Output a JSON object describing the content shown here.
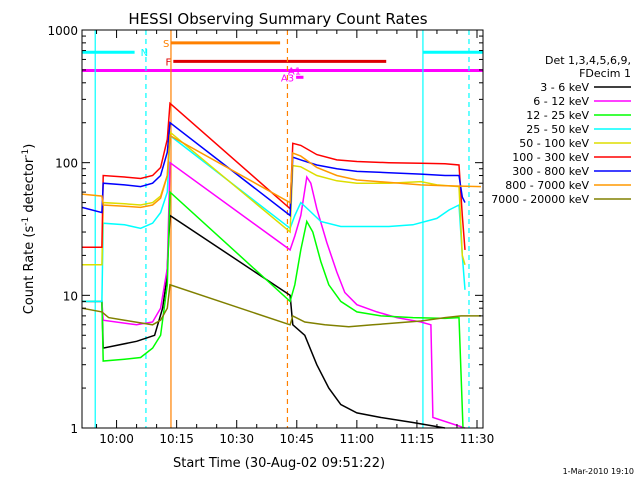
{
  "chart_data": {
    "type": "line",
    "title": "HESSI Observing Summary Count Rates",
    "xlabel": "Start Time (30-Aug-02 09:51:22)",
    "ylabel": "Count Rate (s^-1 detector^-1)",
    "ylabel_main": "Count Rate (s",
    "ylabel_sup1": "-1",
    "ylabel_mid": " detector",
    "ylabel_sup2": "-1",
    "ylabel_end": ")",
    "y_scale": "log",
    "ylim": [
      1,
      1000
    ],
    "xlim": [
      "09:51:22",
      "11:31:30"
    ],
    "x_ticks": [
      "10:00",
      "10:15",
      "10:30",
      "10:45",
      "11:00",
      "11:15",
      "11:30"
    ],
    "y_ticks": [
      "1",
      "10",
      "100",
      "1000"
    ],
    "legend_title": [
      "Det 1,3,4,5,6,9,",
      "FDecim 1"
    ],
    "legend_position": "right",
    "footer": "1-Mar-2010 19:10",
    "series": [
      {
        "name": "3 - 6 keV",
        "color": "#000000",
        "points": [
          [
            "09:51:22",
            9
          ],
          [
            "09:56:20",
            9
          ],
          [
            "09:56:40",
            4
          ],
          [
            "10:05:00",
            4.5
          ],
          [
            "10:09:30",
            5
          ],
          [
            "10:11:30",
            8
          ],
          [
            "10:12:30",
            13
          ],
          [
            "10:13:20",
            40
          ],
          [
            "10:43:20",
            10
          ],
          [
            "10:44:00",
            6
          ],
          [
            "10:47:00",
            5
          ],
          [
            "10:50:00",
            3
          ],
          [
            "10:53:00",
            2
          ],
          [
            "10:56:00",
            1.5
          ],
          [
            "11:00:00",
            1.3
          ],
          [
            "11:06:00",
            1.2
          ],
          [
            "11:14:00",
            1.1
          ],
          [
            "11:22:00",
            1.0
          ]
        ]
      },
      {
        "name": "6 - 12 keV",
        "color": "#ff00ff",
        "points": [
          [
            "09:51:22",
            9
          ],
          [
            "09:56:20",
            9
          ],
          [
            "09:56:40",
            6.5
          ],
          [
            "10:05:00",
            6
          ],
          [
            "10:09:00",
            6.3
          ],
          [
            "10:11:00",
            8
          ],
          [
            "10:12:40",
            16
          ],
          [
            "10:13:20",
            100
          ],
          [
            "10:43:20",
            22
          ],
          [
            "10:44:30",
            28
          ],
          [
            "10:46:00",
            40
          ],
          [
            "10:47:30",
            78
          ],
          [
            "10:48:30",
            70
          ],
          [
            "10:50:00",
            45
          ],
          [
            "10:52:30",
            25
          ],
          [
            "10:55:00",
            15
          ],
          [
            "10:57:00",
            10.5
          ],
          [
            "11:00:00",
            8.5
          ],
          [
            "11:05:00",
            7.5
          ],
          [
            "11:10:00",
            6.8
          ],
          [
            "11:16:00",
            6.3
          ],
          [
            "11:18:30",
            6.0
          ],
          [
            "11:19:00",
            1.2
          ],
          [
            "11:27:00",
            1.0
          ]
        ]
      },
      {
        "name": "12 - 25 keV",
        "color": "#00ff00",
        "points": [
          [
            "09:51:22",
            9
          ],
          [
            "09:56:20",
            9
          ],
          [
            "09:56:40",
            3.2
          ],
          [
            "10:02:00",
            3.3
          ],
          [
            "10:06:00",
            3.4
          ],
          [
            "10:09:00",
            4.0
          ],
          [
            "10:11:00",
            5
          ],
          [
            "10:12:40",
            12
          ],
          [
            "10:13:20",
            60
          ],
          [
            "10:43:20",
            9
          ],
          [
            "10:44:30",
            12
          ],
          [
            "10:46:00",
            22
          ],
          [
            "10:47:30",
            36
          ],
          [
            "10:49:00",
            30
          ],
          [
            "10:51:00",
            18
          ],
          [
            "10:53:00",
            12
          ],
          [
            "10:56:00",
            9
          ],
          [
            "11:00:00",
            7.5
          ],
          [
            "11:06:00",
            7.0
          ],
          [
            "11:14:00",
            6.8
          ],
          [
            "11:22:00",
            6.7
          ],
          [
            "11:25:30",
            6.8
          ],
          [
            "11:26:30",
            1.0
          ]
        ]
      },
      {
        "name": "25 - 50 keV",
        "color": "#00ffff",
        "points": [
          [
            "09:51:22",
            9
          ],
          [
            "09:56:20",
            9
          ],
          [
            "09:56:40",
            35
          ],
          [
            "10:02:00",
            34
          ],
          [
            "10:06:00",
            32
          ],
          [
            "10:09:00",
            35
          ],
          [
            "10:11:00",
            42
          ],
          [
            "10:12:40",
            60
          ],
          [
            "10:13:20",
            160
          ],
          [
            "10:43:20",
            32
          ],
          [
            "10:44:30",
            40
          ],
          [
            "10:46:00",
            50
          ],
          [
            "10:48:00",
            44
          ],
          [
            "10:51:00",
            36
          ],
          [
            "10:56:00",
            33
          ],
          [
            "11:02:00",
            33
          ],
          [
            "11:08:00",
            33
          ],
          [
            "11:14:00",
            34
          ],
          [
            "11:20:00",
            38
          ],
          [
            "11:23:00",
            44
          ],
          [
            "11:25:30",
            48
          ],
          [
            "11:26:20",
            20
          ],
          [
            "11:27:00",
            11
          ]
        ]
      },
      {
        "name": "50 - 100 keV",
        "color": "#dddd00",
        "points": [
          [
            "09:51:22",
            17
          ],
          [
            "09:56:20",
            17
          ],
          [
            "09:56:40",
            50
          ],
          [
            "10:02:00",
            49
          ],
          [
            "10:06:00",
            48
          ],
          [
            "10:09:00",
            50
          ],
          [
            "10:11:00",
            56
          ],
          [
            "10:12:40",
            80
          ],
          [
            "10:13:20",
            170
          ],
          [
            "10:43:20",
            30
          ],
          [
            "10:44:00",
            95
          ],
          [
            "10:46:00",
            93
          ],
          [
            "10:50:00",
            80
          ],
          [
            "10:55:00",
            73
          ],
          [
            "11:00:00",
            70
          ],
          [
            "11:08:00",
            70
          ],
          [
            "11:16:00",
            72
          ],
          [
            "11:20:00",
            68
          ],
          [
            "11:25:30",
            66
          ],
          [
            "11:26:20",
            20
          ],
          [
            "11:27:00",
            17
          ]
        ]
      },
      {
        "name": "100 - 300 keV",
        "color": "#ff0000",
        "points": [
          [
            "09:51:22",
            23
          ],
          [
            "09:56:20",
            23
          ],
          [
            "09:56:40",
            80
          ],
          [
            "10:02:00",
            78
          ],
          [
            "10:06:00",
            76
          ],
          [
            "10:09:00",
            80
          ],
          [
            "10:11:00",
            92
          ],
          [
            "10:12:40",
            150
          ],
          [
            "10:13:20",
            280
          ],
          [
            "10:43:20",
            45
          ],
          [
            "10:44:00",
            140
          ],
          [
            "10:46:00",
            135
          ],
          [
            "10:50:00",
            115
          ],
          [
            "10:55:00",
            105
          ],
          [
            "11:00:00",
            102
          ],
          [
            "11:08:00",
            100
          ],
          [
            "11:16:00",
            99
          ],
          [
            "11:22:00",
            98
          ],
          [
            "11:25:30",
            96
          ],
          [
            "11:26:20",
            40
          ],
          [
            "11:27:00",
            22
          ]
        ]
      },
      {
        "name": "300 - 800 keV",
        "color": "#0000ff",
        "points": [
          [
            "09:51:22",
            46
          ],
          [
            "09:56:20",
            42
          ],
          [
            "09:56:40",
            70
          ],
          [
            "10:02:00",
            68
          ],
          [
            "10:06:00",
            66
          ],
          [
            "10:09:00",
            70
          ],
          [
            "10:11:00",
            80
          ],
          [
            "10:12:40",
            120
          ],
          [
            "10:13:20",
            200
          ],
          [
            "10:43:20",
            40
          ],
          [
            "10:44:00",
            110
          ],
          [
            "10:46:00",
            105
          ],
          [
            "10:50:00",
            96
          ],
          [
            "10:55:00",
            90
          ],
          [
            "11:00:00",
            86
          ],
          [
            "11:08:00",
            84
          ],
          [
            "11:16:00",
            82
          ],
          [
            "11:22:00",
            80
          ],
          [
            "11:25:30",
            80
          ],
          [
            "11:26:20",
            55
          ],
          [
            "11:27:00",
            50
          ]
        ]
      },
      {
        "name": "800 - 7000 keV",
        "color": "#ff9900",
        "points": [
          [
            "09:51:22",
            58
          ],
          [
            "09:56:20",
            56
          ],
          [
            "09:56:40",
            48
          ],
          [
            "10:02:00",
            47
          ],
          [
            "10:06:00",
            46
          ],
          [
            "10:09:00",
            48
          ],
          [
            "10:11:00",
            54
          ],
          [
            "10:12:40",
            80
          ],
          [
            "10:13:20",
            160
          ],
          [
            "10:43:20",
            50
          ],
          [
            "10:44:00",
            118
          ],
          [
            "10:46:00",
            112
          ],
          [
            "10:50:00",
            92
          ],
          [
            "10:55:00",
            80
          ],
          [
            "11:00:00",
            74
          ],
          [
            "11:08:00",
            71
          ],
          [
            "11:16:00",
            68
          ],
          [
            "11:22:00",
            67
          ],
          [
            "11:31:00",
            66
          ]
        ]
      },
      {
        "name": "7000 - 20000 keV",
        "color": "#808000",
        "points": [
          [
            "09:51:22",
            8
          ],
          [
            "09:56:20",
            7.5
          ],
          [
            "09:58:00",
            6.8
          ],
          [
            "10:02:00",
            6.5
          ],
          [
            "10:06:00",
            6.2
          ],
          [
            "10:09:00",
            6.0
          ],
          [
            "10:11:00",
            6.5
          ],
          [
            "10:12:40",
            8
          ],
          [
            "10:13:20",
            12
          ],
          [
            "10:43:20",
            6
          ],
          [
            "10:44:00",
            7
          ],
          [
            "10:47:00",
            6.3
          ],
          [
            "10:52:00",
            6.0
          ],
          [
            "10:58:00",
            5.8
          ],
          [
            "11:04:00",
            6.0
          ],
          [
            "11:10:00",
            6.2
          ],
          [
            "11:16:00",
            6.4
          ],
          [
            "11:22:00",
            6.8
          ],
          [
            "11:26:00",
            7.0
          ],
          [
            "11:31:00",
            7.0
          ]
        ]
      }
    ],
    "flag_bars": [
      {
        "label": "N",
        "color": "#00ffff",
        "y": 680,
        "segments": [
          [
            "09:51:22",
            "10:04:30"
          ],
          [
            "11:16:30",
            "11:31:30"
          ]
        ]
      },
      {
        "label": "S",
        "color": "#ff8000",
        "y": 800,
        "segments": [
          [
            "10:13:40",
            "10:40:50"
          ]
        ]
      },
      {
        "label": "F",
        "color": "#dd0000",
        "y": 580,
        "segments": [
          [
            "10:14:10",
            "11:07:20"
          ]
        ]
      },
      {
        "label": "A1",
        "color": "#ff00ff",
        "y": 495,
        "segments": [
          [
            "09:51:22",
            "11:31:30"
          ]
        ]
      },
      {
        "label": "A3",
        "color": "#ff00ff",
        "y": 440,
        "segments": [
          [
            "10:44:50",
            "10:46:40"
          ]
        ]
      }
    ],
    "vertical_lines": [
      {
        "time": "09:54:40",
        "color": "#00ffff",
        "style": "solid"
      },
      {
        "time": "10:07:20",
        "color": "#00ffff",
        "style": "dashed"
      },
      {
        "time": "10:13:35",
        "color": "#ff8000",
        "style": "solid"
      },
      {
        "time": "10:42:40",
        "color": "#ff8000",
        "style": "dashed"
      },
      {
        "time": "11:16:30",
        "color": "#00ffff",
        "style": "solid"
      },
      {
        "time": "11:28:00",
        "color": "#00ffff",
        "style": "dashed"
      }
    ]
  }
}
